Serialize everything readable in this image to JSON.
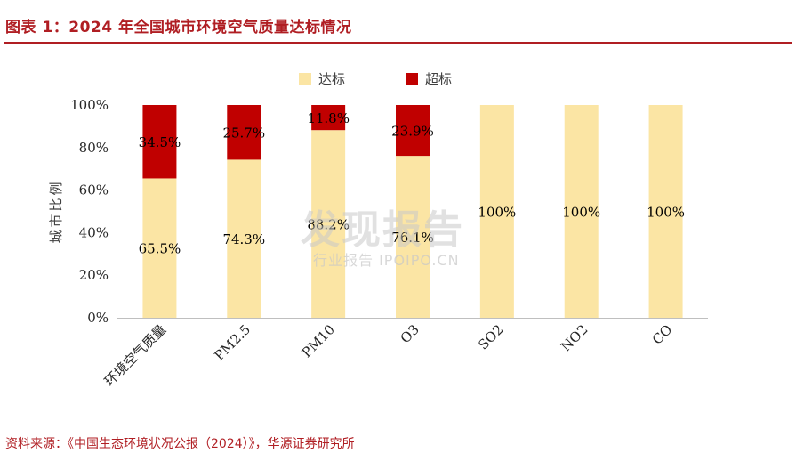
{
  "figure": {
    "title": "图表 1：2024 年全国城市环境空气质量达标情况",
    "source": "资料来源：《中国生态环境状况公报（2024）》，华源证券研究所"
  },
  "watermark": {
    "main": "发现报告",
    "sub": "行业报告 IPOIPO.CN"
  },
  "colors": {
    "accent": "#b01e23",
    "compliant": "#fbe5a4",
    "exceeding": "#c00000",
    "axis": "#bfbfbf"
  },
  "chart_data": {
    "type": "bar",
    "stacked": true,
    "percent_axis": true,
    "categories": [
      "环境空气质量",
      "PM2.5",
      "PM10",
      "O3",
      "SO2",
      "NO2",
      "CO"
    ],
    "series": [
      {
        "name": "达标",
        "values": [
          65.5,
          74.3,
          88.2,
          76.1,
          100,
          100,
          100
        ],
        "labels": [
          "65.5%",
          "74.3%",
          "88.2%",
          "76.1%",
          "100%",
          "100%",
          "100%"
        ]
      },
      {
        "name": "超标",
        "values": [
          34.5,
          25.7,
          11.8,
          23.9,
          0,
          0,
          0
        ],
        "labels": [
          "34.5%",
          "25.7%",
          "11.8%",
          "23.9%",
          "",
          "",
          ""
        ]
      }
    ],
    "ylabel": "城市比例",
    "ylim": [
      0,
      100
    ],
    "yticks": [
      "0%",
      "20%",
      "40%",
      "60%",
      "80%",
      "100%"
    ],
    "legend_position": "top-center",
    "grid": false
  }
}
